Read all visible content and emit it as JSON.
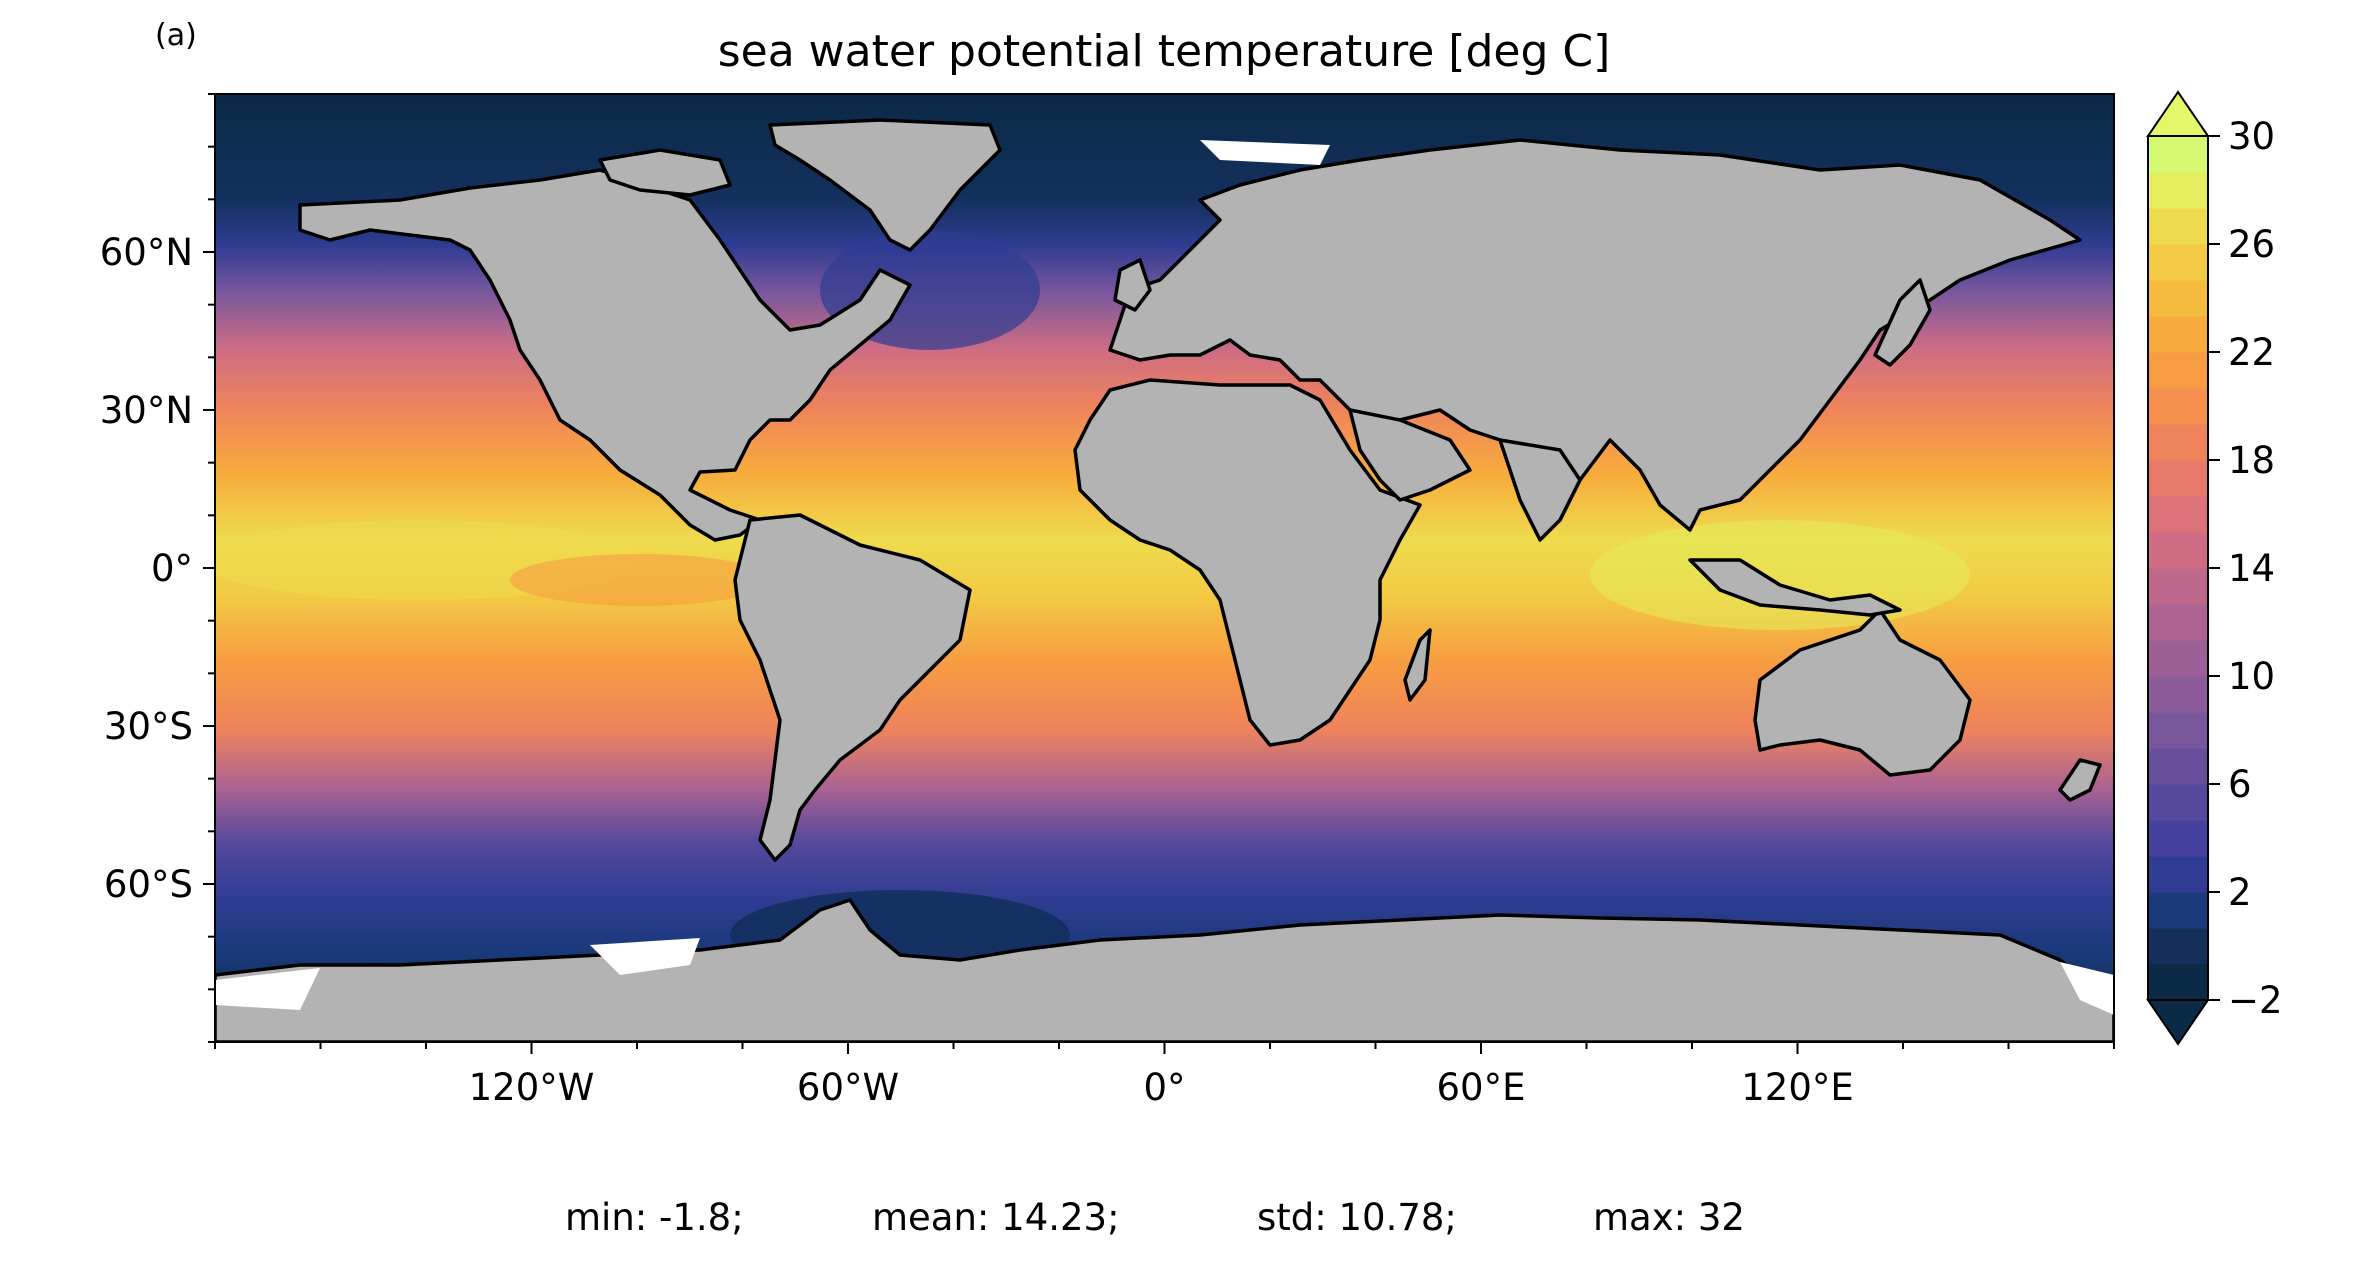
{
  "panel_label": "(a)",
  "title": "sea water potential temperature [deg C]",
  "colormap": {
    "name": "thermal",
    "colors": [
      "#0b2a45",
      "#132f5a",
      "#1b3a7c",
      "#2f3c92",
      "#44419c",
      "#56489c",
      "#684f9c",
      "#7a579d",
      "#8b5c99",
      "#9c6096",
      "#ad6492",
      "#be688b",
      "#ce6d84",
      "#dc727a",
      "#e7796b",
      "#ef835c",
      "#f48f4d",
      "#f79c42",
      "#f7ab3d",
      "#f5bb3e",
      "#f2ca43",
      "#eedb4d",
      "#e4ed5b",
      "#d6f973"
    ],
    "under_color": "#0b2a45",
    "over_color": "#e4f76a"
  },
  "land_color": "#b3b3b3",
  "coast_color": "#000000",
  "colorbar": {
    "ticks": [
      "30",
      "26",
      "22",
      "18",
      "14",
      "10",
      "6",
      "2",
      "−2"
    ],
    "tick_values": [
      30,
      26,
      22,
      18,
      14,
      10,
      6,
      2,
      -2
    ],
    "vmin": -2,
    "vmax": 30,
    "extend": "both"
  },
  "axes": {
    "lon_labels": [
      "120°W",
      "60°W",
      "0°",
      "60°E",
      "120°E"
    ],
    "lon_values": [
      -120,
      -60,
      0,
      60,
      120
    ],
    "lat_labels": [
      "60°N",
      "30°N",
      "0°",
      "30°S",
      "60°S"
    ],
    "lat_values": [
      60,
      30,
      0,
      -30,
      -60
    ],
    "lon_range": [
      -180,
      180
    ],
    "lat_range": [
      -90,
      90
    ],
    "projection": "PlateCarree"
  },
  "stats": {
    "min": "min: -1.8;",
    "mean": "mean: 14.23;",
    "std": "std: 10.78;",
    "max": "max: 32"
  }
}
